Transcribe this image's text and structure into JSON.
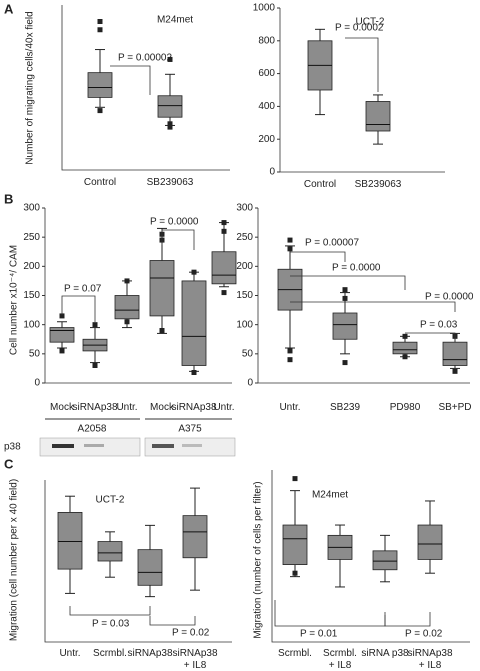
{
  "panel_labels": [
    "A",
    "B",
    "C"
  ],
  "blot": {
    "label": "p38"
  },
  "chart_data": [
    {
      "type": "box",
      "title": "M24met",
      "ylabel": "Number of migrating cells/40x field",
      "categories": [
        "Control",
        "SB239063"
      ],
      "ylim": [
        0,
        100
      ],
      "boxes": [
        {
          "whislo": 38,
          "q1": 44,
          "med": 50,
          "q3": 59,
          "whishi": 73,
          "fliers": [
            90,
            85,
            36
          ]
        },
        {
          "whislo": 27,
          "q1": 32,
          "med": 39,
          "q3": 45,
          "whishi": 58,
          "fliers": [
            67,
            28,
            26
          ]
        }
      ],
      "annotations": [
        "P = 0.00002"
      ]
    },
    {
      "type": "box",
      "title": "UCT-2",
      "categories": [
        "Control",
        "SB239063"
      ],
      "ylim": [
        0,
        1000
      ],
      "yticks": [
        0,
        200,
        400,
        600,
        800,
        1000
      ],
      "boxes": [
        {
          "whislo": 350,
          "q1": 500,
          "med": 650,
          "q3": 800,
          "whishi": 870,
          "fliers": []
        },
        {
          "whislo": 170,
          "q1": 250,
          "med": 290,
          "q3": 430,
          "whishi": 470,
          "fliers": []
        }
      ],
      "annotations": [
        "P = 0.0002"
      ]
    },
    {
      "type": "box",
      "ylabel": "Cell number x10⁻⁴/ CAM",
      "categories": [
        "Mock",
        "siRNAp38",
        "Untr.",
        "Mock",
        "siRNAp38",
        "Untr."
      ],
      "groups": [
        "A2058",
        "A375"
      ],
      "ylim": [
        0,
        300
      ],
      "yticks": [
        0,
        50,
        100,
        150,
        200,
        250,
        300
      ],
      "boxes": [
        {
          "whislo": 60,
          "q1": 70,
          "med": 90,
          "q3": 95,
          "whishi": 105,
          "fliers": [
            55,
            115
          ]
        },
        {
          "whislo": 35,
          "q1": 55,
          "med": 65,
          "q3": 75,
          "whishi": 95,
          "fliers": [
            30,
            100
          ]
        },
        {
          "whislo": 95,
          "q1": 110,
          "med": 125,
          "q3": 150,
          "whishi": 175,
          "fliers": [
            105,
            175
          ]
        },
        {
          "whislo": 85,
          "q1": 115,
          "med": 180,
          "q3": 210,
          "whishi": 265,
          "fliers": [
            90,
            245,
            255
          ]
        },
        {
          "whislo": 20,
          "q1": 30,
          "med": 80,
          "q3": 175,
          "whishi": 190,
          "fliers": [
            18,
            190
          ]
        },
        {
          "whislo": 165,
          "q1": 170,
          "med": 185,
          "q3": 225,
          "whishi": 275,
          "fliers": [
            155,
            260,
            275
          ]
        }
      ],
      "annotations": [
        "P = 0.07",
        "P = 0.0000"
      ]
    },
    {
      "type": "box",
      "categories": [
        "Untr.",
        "SB239",
        "PD980",
        "SB+PD"
      ],
      "ylim": [
        0,
        300
      ],
      "yticks": [
        0,
        50,
        100,
        150,
        200,
        250,
        300
      ],
      "boxes": [
        {
          "whislo": 60,
          "q1": 125,
          "med": 160,
          "q3": 195,
          "whishi": 235,
          "fliers": [
            40,
            55,
            230,
            245
          ]
        },
        {
          "whislo": 50,
          "q1": 75,
          "med": 100,
          "q3": 120,
          "whishi": 155,
          "fliers": [
            35,
            145,
            160
          ]
        },
        {
          "whislo": 45,
          "q1": 50,
          "med": 57,
          "q3": 70,
          "whishi": 80,
          "fliers": [
            45,
            80
          ]
        },
        {
          "whislo": 25,
          "q1": 30,
          "med": 40,
          "q3": 70,
          "whishi": 85,
          "fliers": [
            20,
            80
          ]
        }
      ],
      "annotations": [
        "P = 0.00007",
        "P = 0.0000",
        "P = 0.0000",
        "P = 0.03"
      ]
    },
    {
      "type": "box",
      "title": "UCT-2",
      "ylabel": "Migration (cell number per x 40 field)",
      "categories": [
        "Untr.",
        "Scrmbl.",
        "siRNAp38",
        "siRNAp38\n+ IL8"
      ],
      "ylim": [
        0,
        100
      ],
      "boxes": [
        {
          "whislo": 30,
          "q1": 45,
          "med": 62,
          "q3": 80,
          "whishi": 90,
          "fliers": []
        },
        {
          "whislo": 40,
          "q1": 50,
          "med": 55,
          "q3": 62,
          "whishi": 68,
          "fliers": []
        },
        {
          "whislo": 28,
          "q1": 35,
          "med": 43,
          "q3": 57,
          "whishi": 72,
          "fliers": []
        },
        {
          "whislo": 32,
          "q1": 52,
          "med": 68,
          "q3": 78,
          "whishi": 95,
          "fliers": []
        }
      ],
      "annotations": [
        "P = 0.03",
        "P = 0.02"
      ]
    },
    {
      "type": "box",
      "title": "M24met",
      "ylabel": "Migration (number of cells per filter)",
      "categories": [
        "Scrmbl.",
        "Scrmbl.\n+ IL8",
        "siRNA p38",
        "siRNAp38\n+ IL8"
      ],
      "ylim": [
        0,
        100
      ],
      "boxes": [
        {
          "whislo": 38,
          "q1": 45,
          "med": 60,
          "q3": 68,
          "whishi": 88,
          "fliers": [
            95,
            40
          ]
        },
        {
          "whislo": 32,
          "q1": 48,
          "med": 55,
          "q3": 62,
          "whishi": 68,
          "fliers": []
        },
        {
          "whislo": 35,
          "q1": 42,
          "med": 47,
          "q3": 53,
          "whishi": 62,
          "fliers": []
        },
        {
          "whislo": 40,
          "q1": 48,
          "med": 57,
          "q3": 68,
          "whishi": 82,
          "fliers": []
        }
      ],
      "annotations": [
        "P = 0.01",
        "P = 0.02"
      ]
    }
  ]
}
